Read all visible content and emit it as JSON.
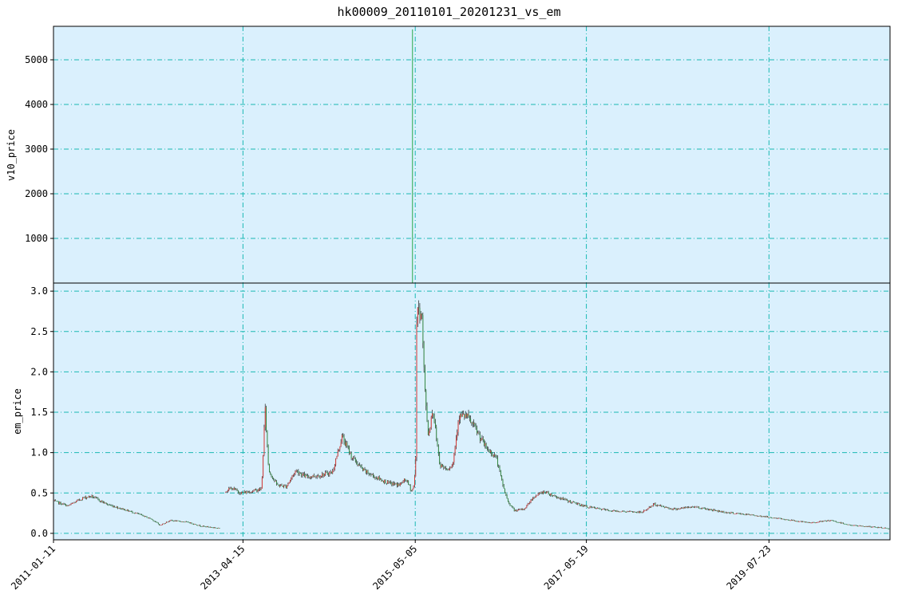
{
  "title": "hk00009_20110101_20201231_vs_em",
  "colors": {
    "panel_bg": "#daf0fd",
    "grid": "#1ab9b4",
    "up": "#e0302c",
    "down": "#2e8a3c",
    "wick": "#222222",
    "spike": "#2aa84a"
  },
  "chart_data": [
    {
      "type": "line",
      "panel": "top",
      "ylabel": "v10_price",
      "yticks": [
        1000,
        2000,
        3000,
        4000,
        5000
      ],
      "ylim": [
        0,
        5750
      ],
      "grid": true,
      "series": [
        {
          "x": [
            "2015-04-23",
            "2015-04-23"
          ],
          "values": [
            0,
            5680
          ]
        }
      ]
    },
    {
      "type": "line",
      "panel": "bottom",
      "ylabel": "em_price",
      "xlabel": "",
      "yticks": [
        0.0,
        0.5,
        1.0,
        1.5,
        2.0,
        2.5,
        3.0
      ],
      "ytick_labels": [
        "0.0",
        "0.5",
        "1.0",
        "1.5",
        "2.0",
        "2.5",
        "3.0"
      ],
      "ylim": [
        -0.08,
        3.1
      ],
      "xlim": [
        "2011-01-11",
        "2020-12-31"
      ],
      "xtick_labels": [
        "2011-01-11",
        "2013-04-15",
        "2015-05-05",
        "2017-05-19",
        "2019-07-23"
      ],
      "grid": true,
      "series": [
        {
          "points": [
            [
              "2011-01-11",
              0.4
            ],
            [
              "2011-03-15",
              0.34
            ],
            [
              "2011-05-20",
              0.44
            ],
            [
              "2011-06-25",
              0.46
            ],
            [
              "2011-09-01",
              0.36
            ],
            [
              "2011-11-10",
              0.3
            ],
            [
              "2012-01-15",
              0.24
            ],
            [
              "2012-03-10",
              0.18
            ],
            [
              "2012-04-20",
              0.1
            ],
            [
              "2012-06-01",
              0.16
            ],
            [
              "2012-08-15",
              0.14
            ],
            [
              "2012-10-15",
              0.09
            ],
            [
              "2012-12-15",
              0.07
            ],
            [
              "2013-01-05",
              0.06
            ],
            null,
            [
              "2013-01-30",
              0.53
            ],
            [
              "2013-02-25",
              0.56
            ],
            [
              "2013-04-05",
              0.5
            ],
            [
              "2013-05-20",
              0.52
            ],
            [
              "2013-07-05",
              0.55
            ],
            [
              "2013-07-20",
              1.55
            ],
            [
              "2013-08-05",
              0.78
            ],
            [
              "2013-09-10",
              0.6
            ],
            [
              "2013-10-20",
              0.58
            ],
            [
              "2013-12-01",
              0.78
            ],
            [
              "2014-01-15",
              0.7
            ],
            [
              "2014-03-20",
              0.72
            ],
            [
              "2014-05-10",
              0.76
            ],
            [
              "2014-06-20",
              1.2
            ],
            [
              "2014-08-01",
              0.95
            ],
            [
              "2014-09-20",
              0.78
            ],
            [
              "2014-11-10",
              0.7
            ],
            [
              "2015-01-10",
              0.62
            ],
            [
              "2015-02-25",
              0.6
            ],
            [
              "2015-03-25",
              0.67
            ],
            [
              "2015-04-20",
              0.52
            ],
            [
              "2015-05-01",
              0.62
            ],
            [
              "2015-05-08",
              1.05
            ],
            [
              "2015-05-12",
              2.95
            ],
            [
              "2015-05-20",
              2.7
            ],
            [
              "2015-06-01",
              2.8
            ],
            [
              "2015-06-15",
              1.8
            ],
            [
              "2015-07-01",
              1.2
            ],
            [
              "2015-07-20",
              1.55
            ],
            [
              "2015-08-20",
              0.85
            ],
            [
              "2015-09-20",
              0.8
            ],
            [
              "2015-10-15",
              0.85
            ],
            [
              "2015-11-10",
              1.45
            ],
            [
              "2015-12-15",
              1.45
            ],
            [
              "2016-01-20",
              1.3
            ],
            [
              "2016-03-10",
              1.05
            ],
            [
              "2016-04-20",
              0.95
            ],
            [
              "2016-05-20",
              0.6
            ],
            [
              "2016-06-10",
              0.4
            ],
            [
              "2016-07-10",
              0.28
            ],
            [
              "2016-08-20",
              0.3
            ],
            [
              "2016-10-01",
              0.45
            ],
            [
              "2016-11-15",
              0.52
            ],
            [
              "2017-01-10",
              0.45
            ],
            [
              "2017-03-01",
              0.4
            ],
            [
              "2017-05-19",
              0.33
            ],
            [
              "2017-09-01",
              0.28
            ],
            [
              "2018-01-15",
              0.26
            ],
            [
              "2018-03-10",
              0.36
            ],
            [
              "2018-06-01",
              0.3
            ],
            [
              "2018-09-01",
              0.33
            ],
            [
              "2019-01-15",
              0.26
            ],
            [
              "2019-06-01",
              0.22
            ],
            [
              "2019-09-15",
              0.18
            ],
            [
              "2020-01-15",
              0.13
            ],
            [
              "2020-04-15",
              0.16
            ],
            [
              "2020-07-15",
              0.1
            ],
            [
              "2020-10-15",
              0.08
            ],
            [
              "2020-12-31",
              0.06
            ]
          ]
        }
      ]
    }
  ]
}
